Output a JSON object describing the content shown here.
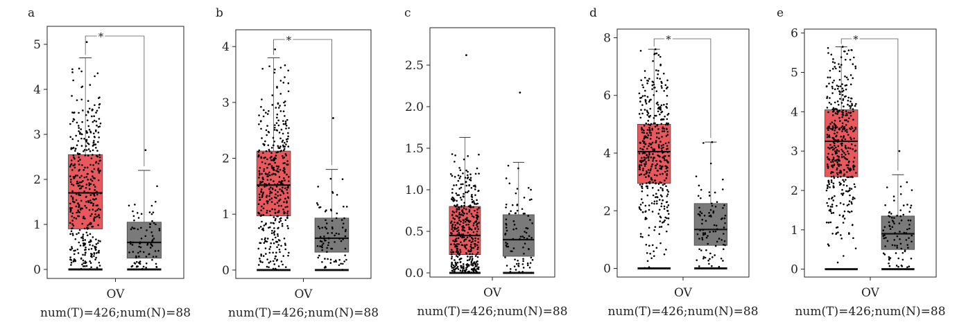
{
  "colors": {
    "tumor": "#e8585d",
    "normal": "#7a7a7a",
    "points": "#000000",
    "frame": "#222222"
  },
  "chart_data": [
    {
      "type": "box",
      "panel_label": "a",
      "xlabel": "OV",
      "sample_label": "num(T)=426;num(N)=88",
      "significance": "*",
      "y_ticks": [
        "0",
        "1",
        "2",
        "3",
        "4",
        "5"
      ],
      "ylim": [
        -0.2,
        5.4
      ],
      "series": [
        {
          "name": "T",
          "n": 426,
          "min": 0,
          "q1": 0.9,
          "median": 1.7,
          "q3": 2.55,
          "whisker_high": 4.7,
          "max_point": 5.05
        },
        {
          "name": "N",
          "n": 88,
          "min": 0,
          "q1": 0.25,
          "median": 0.6,
          "q3": 1.05,
          "whisker_high": 2.2,
          "max_point": 2.65
        }
      ]
    },
    {
      "type": "box",
      "panel_label": "b",
      "xlabel": "OV",
      "sample_label": "num(T)=426;num(N)=88",
      "significance": "*",
      "y_ticks": [
        "0",
        "1",
        "2",
        "3",
        "4"
      ],
      "ylim": [
        -0.15,
        4.3
      ],
      "series": [
        {
          "name": "T",
          "n": 426,
          "min": 0,
          "q1": 0.97,
          "median": 1.52,
          "q3": 2.13,
          "whisker_high": 3.8,
          "max_point": 3.95
        },
        {
          "name": "N",
          "n": 88,
          "min": 0,
          "q1": 0.32,
          "median": 0.57,
          "q3": 0.93,
          "whisker_high": 1.8,
          "max_point": 2.72
        }
      ]
    },
    {
      "type": "box",
      "panel_label": "c",
      "xlabel": "OV",
      "sample_label": "num(T)=426;num(N)=88",
      "significance": "",
      "y_ticks": [
        "0.0",
        "0.5",
        "1.0",
        "1.5",
        "2.0",
        "2.5"
      ],
      "ylim": [
        -0.05,
        2.95
      ],
      "series": [
        {
          "name": "T",
          "n": 426,
          "min": 0,
          "q1": 0.22,
          "median": 0.45,
          "q3": 0.8,
          "whisker_high": 1.63,
          "max_point": 2.62
        },
        {
          "name": "N",
          "n": 88,
          "min": 0,
          "q1": 0.2,
          "median": 0.4,
          "q3": 0.7,
          "whisker_high": 1.33,
          "max_point": 2.17
        }
      ]
    },
    {
      "type": "box",
      "panel_label": "d",
      "xlabel": "OV",
      "sample_label": "num(T)=426;num(N)=88",
      "significance": "*",
      "y_ticks": [
        "0",
        "2",
        "4",
        "6",
        "8"
      ],
      "ylim": [
        -0.3,
        8.3
      ],
      "series": [
        {
          "name": "T",
          "n": 426,
          "min": 0,
          "q1": 2.95,
          "median": 4.05,
          "q3": 5.0,
          "whisker_high": 7.6,
          "max_point": 7.6
        },
        {
          "name": "N",
          "n": 88,
          "min": 0,
          "q1": 0.8,
          "median": 1.35,
          "q3": 2.25,
          "whisker_high": 4.38,
          "max_point": 4.38
        }
      ]
    },
    {
      "type": "box",
      "panel_label": "e",
      "xlabel": "OV",
      "sample_label": "num(T)=426;num(N)=88",
      "significance": "*",
      "y_ticks": [
        "0",
        "1",
        "2",
        "3",
        "4",
        "5",
        "6"
      ],
      "ylim": [
        -0.2,
        6.1
      ],
      "series": [
        {
          "name": "T",
          "n": 426,
          "min": 0,
          "q1": 2.35,
          "median": 3.25,
          "q3": 4.05,
          "whisker_high": 5.65,
          "max_point": 5.65
        },
        {
          "name": "N",
          "n": 88,
          "min": 0,
          "q1": 0.5,
          "median": 0.9,
          "q3": 1.35,
          "whisker_high": 2.4,
          "max_point": 3.0
        }
      ]
    }
  ]
}
